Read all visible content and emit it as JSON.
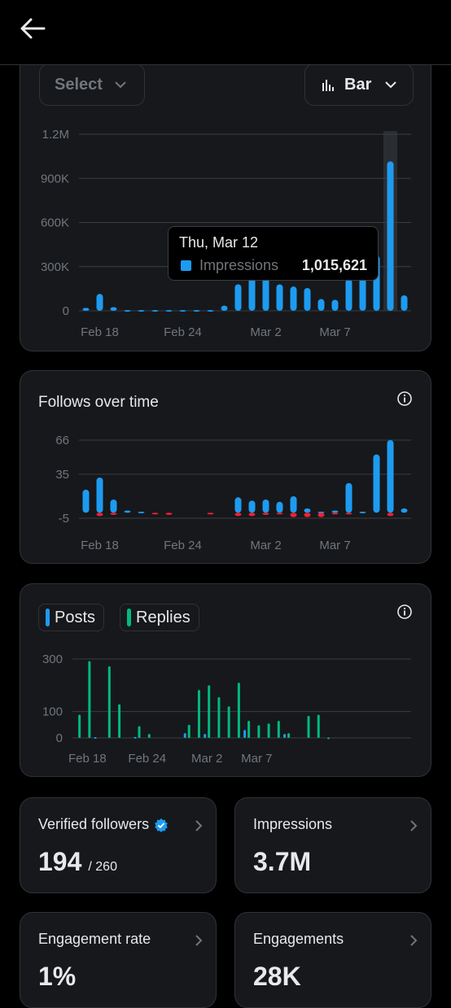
{
  "colors": {
    "blue": "#1d9bf0",
    "green": "#00ba7c",
    "red": "#f4212e",
    "grid": "#3a3d42",
    "axis_text": "#71767b"
  },
  "icons": {
    "back": "arrow-left-icon",
    "chevron": "chevron-down-icon",
    "bar_chart": "bar-chart-icon",
    "info": "info-icon",
    "verified": "verified-badge-icon",
    "chevron_right": "chevron-right-icon"
  },
  "controls": {
    "select_label": "Select",
    "chart_type_label": "Bar"
  },
  "tooltip": {
    "date": "Thu, Mar 12",
    "series": "Impressions",
    "value": "1,015,621"
  },
  "follows_card": {
    "title": "Follows over time"
  },
  "posts_card": {
    "legend": [
      {
        "label": "Posts"
      },
      {
        "label": "Replies"
      }
    ]
  },
  "stats": [
    {
      "title": "Verified followers",
      "value": "194",
      "sub": "/ 260"
    },
    {
      "title": "Impressions",
      "value": "3.7M"
    },
    {
      "title": "Engagement rate",
      "value": "1%"
    },
    {
      "title": "Engagements",
      "value": "28K"
    }
  ],
  "chart_data": [
    {
      "type": "bar",
      "x_tick_labels": [
        "Feb 18",
        "Feb 24",
        "Mar 2",
        "Mar 7"
      ],
      "x_tick_positions": [
        1,
        7,
        13,
        18
      ],
      "y_tick_labels": [
        "1.2M",
        "900K",
        "600K",
        "300K",
        "0"
      ],
      "y_ticks": [
        1200000,
        900000,
        600000,
        300000,
        0
      ],
      "ylim": [
        0,
        1200000
      ],
      "highlight_index": 22,
      "series": [
        {
          "name": "Impressions",
          "color": "#1d9bf0",
          "values": [
            20000,
            115000,
            25000,
            5000,
            5000,
            5000,
            5000,
            5000,
            5000,
            5000,
            35000,
            180000,
            245000,
            235000,
            180000,
            165000,
            155000,
            80000,
            75000,
            215000,
            255000,
            375000,
            1015621,
            105000
          ]
        }
      ]
    },
    {
      "type": "bar",
      "x_tick_labels": [
        "Feb 18",
        "Feb 24",
        "Mar 2",
        "Mar 7"
      ],
      "x_tick_positions": [
        1,
        7,
        13,
        18
      ],
      "y_tick_labels": [
        "66",
        "35",
        "-5"
      ],
      "y_ticks": [
        66,
        35,
        -5
      ],
      "ylim": [
        -5,
        66
      ],
      "series": [
        {
          "name": "Follows",
          "color": "#1d9bf0",
          "values": [
            21,
            32,
            12,
            2,
            1,
            0,
            0,
            0,
            0,
            0,
            0,
            14,
            11,
            12,
            10,
            15,
            4,
            1,
            2,
            27,
            1,
            53,
            66,
            4
          ]
        },
        {
          "name": "Unfollows",
          "color": "#f4212e",
          "values": [
            0,
            -3,
            -2,
            0,
            0,
            -1,
            -2,
            0,
            0,
            -1,
            0,
            -3,
            -3,
            -2,
            -1,
            -4,
            -4,
            -4,
            -1,
            -1,
            0,
            0,
            -3,
            0
          ]
        }
      ]
    },
    {
      "type": "bar",
      "x_tick_labels": [
        "Feb 18",
        "Feb 24",
        "Mar 2",
        "Mar 7"
      ],
      "x_tick_positions": [
        1,
        7,
        13,
        18
      ],
      "y_tick_labels": [
        "300",
        "100",
        "0"
      ],
      "y_ticks": [
        300,
        100,
        0
      ],
      "ylim": [
        0,
        300
      ],
      "series": [
        {
          "name": "Posts",
          "color": "#1d9bf0",
          "values": [
            0,
            0,
            3,
            0,
            0,
            0,
            4,
            0,
            0,
            0,
            0,
            18,
            0,
            15,
            0,
            0,
            0,
            30,
            0,
            0,
            0,
            15,
            0,
            0,
            0,
            0,
            0,
            0,
            0,
            0,
            0,
            0,
            0,
            0
          ]
        },
        {
          "name": "Replies",
          "color": "#00ba7c",
          "values": [
            88,
            292,
            0,
            272,
            128,
            0,
            45,
            15,
            0,
            0,
            0,
            50,
            182,
            200,
            155,
            120,
            210,
            65,
            48,
            55,
            65,
            18,
            0,
            84,
            88,
            2,
            0,
            0,
            0,
            0,
            0,
            0,
            0,
            0
          ]
        }
      ]
    }
  ]
}
